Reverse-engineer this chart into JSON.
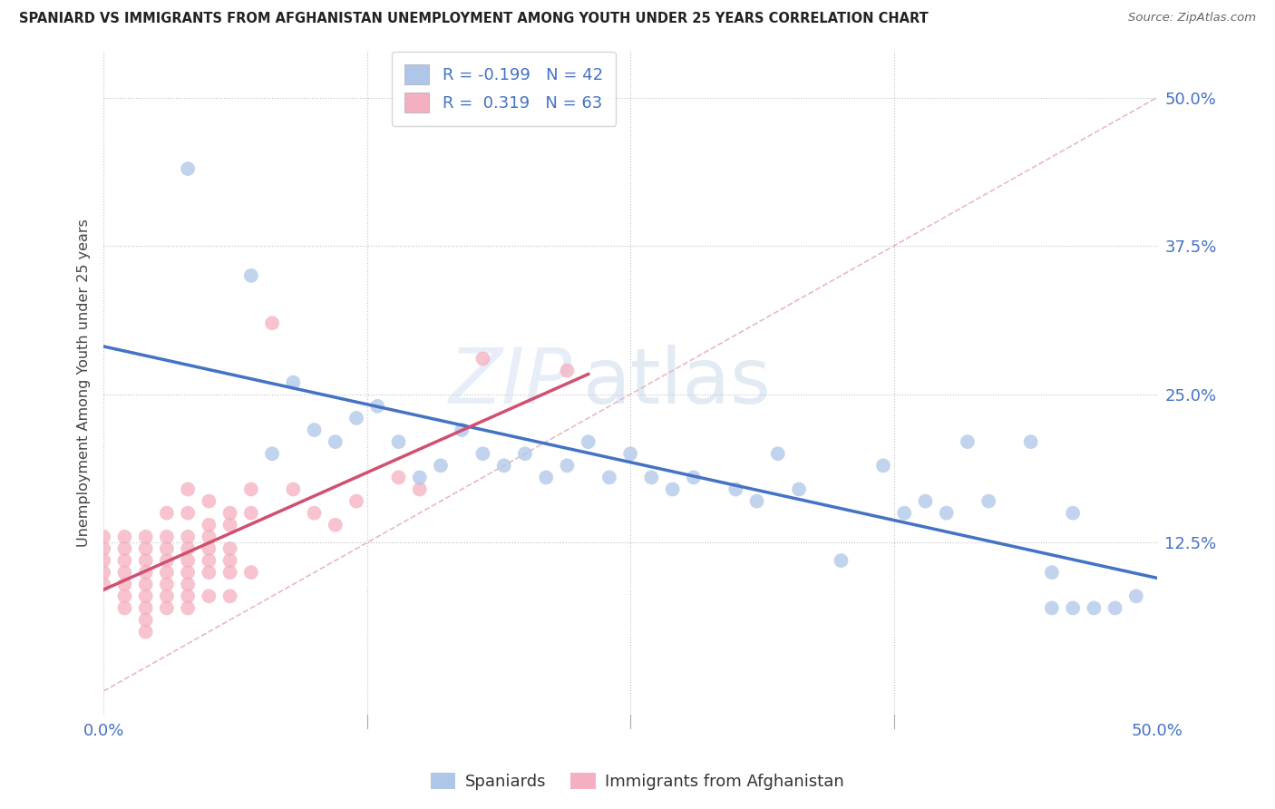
{
  "title": "SPANIARD VS IMMIGRANTS FROM AFGHANISTAN UNEMPLOYMENT AMONG YOUTH UNDER 25 YEARS CORRELATION CHART",
  "source": "Source: ZipAtlas.com",
  "ylabel": "Unemployment Among Youth under 25 years",
  "xlim": [
    0.0,
    0.5
  ],
  "ylim": [
    -0.02,
    0.54
  ],
  "ytick_vals": [
    0.125,
    0.25,
    0.375,
    0.5
  ],
  "ytick_labels": [
    "12.5%",
    "25.0%",
    "37.5%",
    "50.0%"
  ],
  "xtick_vals": [
    0.0,
    0.125,
    0.25,
    0.375,
    0.5
  ],
  "xtick_labels": [
    "0.0%",
    "",
    "",
    "",
    "50.0%"
  ],
  "blue_R": -0.199,
  "blue_N": 42,
  "pink_R": 0.319,
  "pink_N": 63,
  "blue_color": "#aec6e8",
  "pink_color": "#f4afc0",
  "blue_line_color": "#4472c4",
  "pink_line_color": "#d05070",
  "diagonal_color": "#e8b0c0",
  "legend_label_blue": "Spaniards",
  "legend_label_pink": "Immigrants from Afghanistan",
  "blue_x": [
    0.04,
    0.07,
    0.08,
    0.09,
    0.1,
    0.11,
    0.12,
    0.13,
    0.14,
    0.15,
    0.16,
    0.17,
    0.18,
    0.19,
    0.2,
    0.21,
    0.22,
    0.23,
    0.24,
    0.25,
    0.26,
    0.27,
    0.28,
    0.3,
    0.31,
    0.32,
    0.33,
    0.35,
    0.37,
    0.38,
    0.39,
    0.4,
    0.41,
    0.42,
    0.44,
    0.45,
    0.46,
    0.47,
    0.48,
    0.49,
    0.45,
    0.46
  ],
  "blue_y": [
    0.44,
    0.35,
    0.2,
    0.26,
    0.22,
    0.21,
    0.23,
    0.24,
    0.21,
    0.18,
    0.19,
    0.22,
    0.2,
    0.19,
    0.2,
    0.18,
    0.19,
    0.21,
    0.18,
    0.2,
    0.18,
    0.17,
    0.18,
    0.17,
    0.16,
    0.2,
    0.17,
    0.11,
    0.19,
    0.15,
    0.16,
    0.15,
    0.21,
    0.16,
    0.21,
    0.1,
    0.15,
    0.07,
    0.07,
    0.08,
    0.07,
    0.07
  ],
  "pink_x": [
    0.0,
    0.0,
    0.0,
    0.0,
    0.0,
    0.01,
    0.01,
    0.01,
    0.01,
    0.01,
    0.01,
    0.01,
    0.02,
    0.02,
    0.02,
    0.02,
    0.02,
    0.02,
    0.02,
    0.02,
    0.02,
    0.03,
    0.03,
    0.03,
    0.03,
    0.03,
    0.03,
    0.03,
    0.03,
    0.04,
    0.04,
    0.04,
    0.04,
    0.04,
    0.04,
    0.04,
    0.04,
    0.04,
    0.05,
    0.05,
    0.05,
    0.05,
    0.05,
    0.05,
    0.05,
    0.06,
    0.06,
    0.06,
    0.06,
    0.06,
    0.06,
    0.07,
    0.07,
    0.07,
    0.08,
    0.09,
    0.1,
    0.11,
    0.12,
    0.14,
    0.15,
    0.18,
    0.22
  ],
  "pink_y": [
    0.12,
    0.13,
    0.11,
    0.1,
    0.09,
    0.13,
    0.11,
    0.12,
    0.1,
    0.09,
    0.08,
    0.07,
    0.13,
    0.12,
    0.11,
    0.1,
    0.09,
    0.08,
    0.07,
    0.06,
    0.05,
    0.15,
    0.13,
    0.12,
    0.11,
    0.1,
    0.09,
    0.08,
    0.07,
    0.17,
    0.15,
    0.13,
    0.12,
    0.11,
    0.1,
    0.09,
    0.08,
    0.07,
    0.16,
    0.14,
    0.13,
    0.12,
    0.11,
    0.1,
    0.08,
    0.15,
    0.14,
    0.12,
    0.11,
    0.1,
    0.08,
    0.17,
    0.15,
    0.1,
    0.31,
    0.17,
    0.15,
    0.14,
    0.16,
    0.18,
    0.17,
    0.28,
    0.27
  ]
}
